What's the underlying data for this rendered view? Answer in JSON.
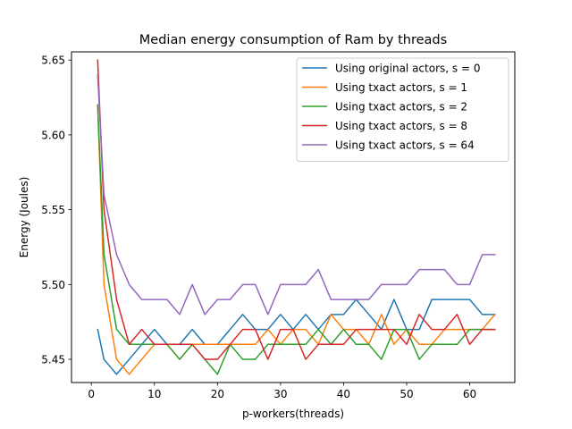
{
  "chart_data": {
    "type": "line",
    "title": "Median energy consumption of Ram by threads",
    "xlabel": "p-workers(threads)",
    "ylabel": "Energy (Joules)",
    "xlim": [
      -3.15,
      67.15
    ],
    "ylim": [
      5.4345,
      5.6555
    ],
    "xticks": [
      0,
      10,
      20,
      30,
      40,
      50,
      60
    ],
    "yticks": [
      5.45,
      5.5,
      5.55,
      5.6,
      5.65
    ],
    "ytick_labels": [
      "5.45",
      "5.50",
      "5.55",
      "5.60",
      "5.65"
    ],
    "grid": false,
    "legend_position": "top-right",
    "x": [
      1,
      2,
      4,
      6,
      8,
      10,
      12,
      14,
      16,
      18,
      20,
      22,
      24,
      26,
      28,
      30,
      32,
      34,
      36,
      38,
      40,
      42,
      44,
      46,
      48,
      50,
      52,
      54,
      56,
      58,
      60,
      62,
      64
    ],
    "series": [
      {
        "name": "Using original actors, s = 0",
        "color": "#1f77b4",
        "values": [
          5.47,
          5.45,
          5.44,
          5.45,
          5.46,
          5.47,
          5.46,
          5.46,
          5.47,
          5.46,
          5.46,
          5.47,
          5.48,
          5.47,
          5.47,
          5.48,
          5.47,
          5.48,
          5.47,
          5.48,
          5.48,
          5.49,
          5.48,
          5.47,
          5.49,
          5.47,
          5.47,
          5.49,
          5.49,
          5.49,
          5.49,
          5.48,
          5.48
        ]
      },
      {
        "name": "Using txact actors, s = 1",
        "color": "#ff7f0e",
        "values": [
          5.62,
          5.5,
          5.45,
          5.44,
          5.45,
          5.46,
          5.46,
          5.45,
          5.46,
          5.46,
          5.46,
          5.46,
          5.46,
          5.46,
          5.47,
          5.46,
          5.47,
          5.47,
          5.46,
          5.48,
          5.47,
          5.47,
          5.46,
          5.48,
          5.46,
          5.47,
          5.46,
          5.46,
          5.47,
          5.47,
          5.47,
          5.47,
          5.48
        ]
      },
      {
        "name": "Using txact actors, s = 2",
        "color": "#2ca02c",
        "values": [
          5.62,
          5.52,
          5.47,
          5.46,
          5.46,
          5.46,
          5.46,
          5.45,
          5.46,
          5.45,
          5.44,
          5.46,
          5.45,
          5.45,
          5.46,
          5.46,
          5.46,
          5.46,
          5.47,
          5.46,
          5.47,
          5.46,
          5.46,
          5.45,
          5.47,
          5.47,
          5.45,
          5.46,
          5.46,
          5.46,
          5.47,
          5.47,
          5.47
        ]
      },
      {
        "name": "Using txact actors, s = 8",
        "color": "#d62728",
        "values": [
          5.65,
          5.55,
          5.49,
          5.46,
          5.47,
          5.46,
          5.46,
          5.46,
          5.46,
          5.45,
          5.45,
          5.46,
          5.47,
          5.47,
          5.45,
          5.47,
          5.47,
          5.45,
          5.46,
          5.46,
          5.46,
          5.47,
          5.47,
          5.47,
          5.47,
          5.46,
          5.48,
          5.47,
          5.47,
          5.48,
          5.46,
          5.47,
          5.47
        ]
      },
      {
        "name": "Using txact actors, s = 64",
        "color": "#9467bd",
        "values": [
          5.64,
          5.56,
          5.52,
          5.5,
          5.49,
          5.49,
          5.49,
          5.48,
          5.5,
          5.48,
          5.49,
          5.49,
          5.5,
          5.5,
          5.48,
          5.5,
          5.5,
          5.5,
          5.51,
          5.49,
          5.49,
          5.49,
          5.49,
          5.5,
          5.5,
          5.5,
          5.51,
          5.51,
          5.51,
          5.5,
          5.5,
          5.52,
          5.52
        ]
      }
    ]
  }
}
